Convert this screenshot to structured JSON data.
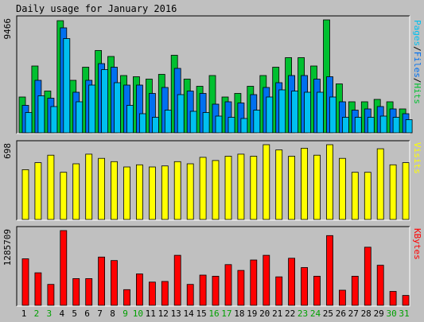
{
  "chart_data": [
    {
      "type": "bar",
      "title": "Daily usage for January 2016",
      "max_label": "9466",
      "ylabel_parts": [
        "Pages",
        "/",
        "Files",
        "/",
        "Hits"
      ],
      "ylim": [
        0,
        9466
      ],
      "categories": [
        "1",
        "2",
        "3",
        "4",
        "5",
        "6",
        "7",
        "8",
        "9",
        "10",
        "11",
        "12",
        "13",
        "14",
        "15",
        "16",
        "17",
        "18",
        "19",
        "20",
        "21",
        "22",
        "23",
        "24",
        "25",
        "26",
        "27",
        "28",
        "29",
        "30",
        "31"
      ],
      "series": [
        {
          "name": "Hits",
          "color": "#00c030",
          "values": [
            3000,
            5600,
            3500,
            9400,
            4400,
            5500,
            6900,
            6400,
            4800,
            4700,
            4500,
            4900,
            6500,
            4500,
            3900,
            4800,
            3000,
            3300,
            3900,
            4800,
            5500,
            6300,
            6300,
            5600,
            9466,
            4100,
            2600,
            2600,
            2800,
            2600,
            2000
          ]
        },
        {
          "name": "Files",
          "color": "#0070f0",
          "values": [
            2300,
            4400,
            2900,
            8800,
            3400,
            4400,
            5800,
            5500,
            4000,
            4000,
            3300,
            3800,
            5400,
            3500,
            3300,
            2400,
            2600,
            2500,
            3200,
            3800,
            4200,
            4800,
            4800,
            4500,
            4700,
            2600,
            1900,
            2000,
            2200,
            2000,
            1600
          ]
        },
        {
          "name": "Pages",
          "color": "#00c0f0",
          "values": [
            1700,
            3100,
            2200,
            7900,
            2600,
            4000,
            5300,
            4200,
            2300,
            1600,
            1300,
            1900,
            3200,
            1800,
            1700,
            1400,
            1300,
            1200,
            1900,
            3000,
            3600,
            3500,
            3400,
            3400,
            3000,
            1300,
            1300,
            1300,
            1400,
            1300,
            1100
          ]
        }
      ]
    },
    {
      "type": "bar",
      "max_label": "698",
      "ylabel": "Visits",
      "ylim": [
        0,
        698
      ],
      "categories": [
        "1",
        "2",
        "3",
        "4",
        "5",
        "6",
        "7",
        "8",
        "9",
        "10",
        "11",
        "12",
        "13",
        "14",
        "15",
        "16",
        "17",
        "18",
        "19",
        "20",
        "21",
        "22",
        "23",
        "24",
        "25",
        "26",
        "27",
        "28",
        "29",
        "30",
        "31"
      ],
      "series": [
        {
          "name": "Visits",
          "color": "#ffff00",
          "values": [
            465,
            530,
            600,
            440,
            520,
            610,
            570,
            540,
            490,
            510,
            490,
            500,
            540,
            520,
            580,
            550,
            590,
            610,
            590,
            698,
            650,
            590,
            665,
            600,
            698,
            570,
            440,
            440,
            660,
            510,
            530
          ]
        }
      ]
    },
    {
      "type": "bar",
      "max_label": "1285709",
      "ylabel": "KBytes",
      "ylim": [
        0,
        1285709
      ],
      "categories": [
        "1",
        "2",
        "3",
        "4",
        "5",
        "6",
        "7",
        "8",
        "9",
        "10",
        "11",
        "12",
        "13",
        "14",
        "15",
        "16",
        "17",
        "18",
        "19",
        "20",
        "21",
        "22",
        "23",
        "24",
        "25",
        "26",
        "27",
        "28",
        "29",
        "30",
        "31"
      ],
      "series": [
        {
          "name": "KBytes",
          "color": "#ff0000",
          "values": [
            800000,
            560000,
            360000,
            1285709,
            460000,
            460000,
            830000,
            770000,
            270000,
            540000,
            400000,
            410000,
            860000,
            360000,
            520000,
            500000,
            700000,
            600000,
            780000,
            860000,
            490000,
            810000,
            650000,
            500000,
            1200000,
            260000,
            500000,
            1000000,
            690000,
            240000,
            170000
          ]
        }
      ]
    }
  ],
  "day_colors": [
    "#000000",
    "#00a000",
    "#00a000",
    "#000000",
    "#000000",
    "#000000",
    "#000000",
    "#000000",
    "#00a000",
    "#00a000",
    "#000000",
    "#000000",
    "#000000",
    "#000000",
    "#000000",
    "#00a000",
    "#00a000",
    "#000000",
    "#000000",
    "#000000",
    "#000000",
    "#000000",
    "#00a000",
    "#00a000",
    "#000000",
    "#000000",
    "#000000",
    "#000000",
    "#000000",
    "#00a000",
    "#00a000"
  ]
}
